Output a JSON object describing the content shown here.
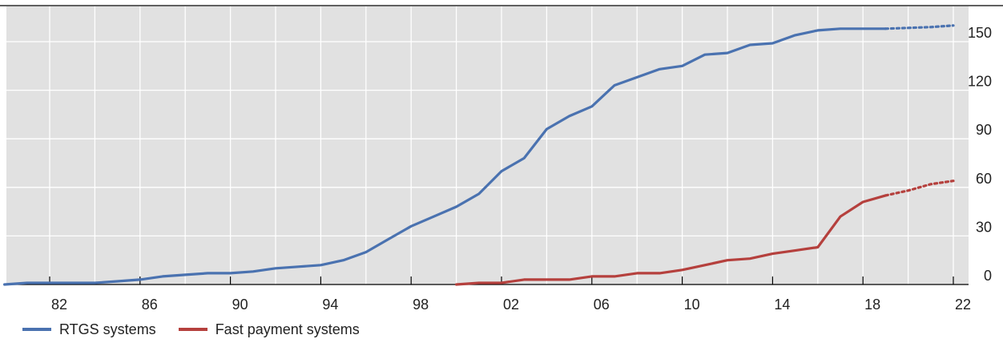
{
  "chart_data": {
    "type": "line",
    "title": "",
    "xlabel": "",
    "ylabel": "",
    "xlim": [
      1980.0,
      2022.2
    ],
    "ylim": [
      0,
      163
    ],
    "x_ticks": [
      {
        "value": 1982,
        "label": "82"
      },
      {
        "value": 1986,
        "label": "86"
      },
      {
        "value": 1990,
        "label": "90"
      },
      {
        "value": 1994,
        "label": "94"
      },
      {
        "value": 1998,
        "label": "98"
      },
      {
        "value": 2002,
        "label": "02"
      },
      {
        "value": 2006,
        "label": "06"
      },
      {
        "value": 2010,
        "label": "10"
      },
      {
        "value": 2014,
        "label": "14"
      },
      {
        "value": 2018,
        "label": "18"
      },
      {
        "value": 2022,
        "label": "22"
      }
    ],
    "y_ticks": [
      {
        "value": 0,
        "label": "0"
      },
      {
        "value": 30,
        "label": "30"
      },
      {
        "value": 60,
        "label": "60"
      },
      {
        "value": 90,
        "label": "90"
      },
      {
        "value": 120,
        "label": "120"
      },
      {
        "value": 150,
        "label": "150"
      }
    ],
    "y_axis_side": "right",
    "grid": true,
    "legend_position": "bottom-left",
    "series": [
      {
        "name": "RTGS systems",
        "color": "#4a72b0",
        "points": [
          [
            1980.0,
            0
          ],
          [
            1981.0,
            1
          ],
          [
            1982.0,
            1
          ],
          [
            1983.0,
            1
          ],
          [
            1984.0,
            1
          ],
          [
            1985.0,
            2
          ],
          [
            1986.0,
            3
          ],
          [
            1987.0,
            5
          ],
          [
            1988.0,
            6
          ],
          [
            1989.0,
            7
          ],
          [
            1990.0,
            7
          ],
          [
            1991.0,
            8
          ],
          [
            1992.0,
            10
          ],
          [
            1993.0,
            11
          ],
          [
            1994.0,
            12
          ],
          [
            1995.0,
            15
          ],
          [
            1996.0,
            20
          ],
          [
            1997.0,
            28
          ],
          [
            1998.0,
            36
          ],
          [
            1999.0,
            42
          ],
          [
            2000.0,
            48
          ],
          [
            2001.0,
            56
          ],
          [
            2002.0,
            70
          ],
          [
            2003.0,
            78
          ],
          [
            2004.0,
            96
          ],
          [
            2005.0,
            104
          ],
          [
            2006.0,
            110
          ],
          [
            2007.0,
            123
          ],
          [
            2008.0,
            128
          ],
          [
            2009.0,
            133
          ],
          [
            2010.0,
            135
          ],
          [
            2011.0,
            142
          ],
          [
            2012.0,
            143
          ],
          [
            2013.0,
            148
          ],
          [
            2014.0,
            149
          ],
          [
            2015.0,
            154
          ],
          [
            2016.0,
            157
          ],
          [
            2017.0,
            158
          ],
          [
            2018.0,
            158
          ],
          [
            2019.0,
            158
          ]
        ],
        "projected": [
          [
            2019.0,
            158
          ],
          [
            2020.0,
            158.5
          ],
          [
            2021.0,
            159
          ],
          [
            2022.0,
            160
          ]
        ]
      },
      {
        "name": "Fast payment systems",
        "color": "#b5403d",
        "points": [
          [
            2000.0,
            0
          ],
          [
            2001.0,
            1
          ],
          [
            2002.0,
            1
          ],
          [
            2003.0,
            3
          ],
          [
            2004.0,
            3
          ],
          [
            2005.0,
            3
          ],
          [
            2006.0,
            5
          ],
          [
            2007.0,
            5
          ],
          [
            2008.0,
            7
          ],
          [
            2009.0,
            7
          ],
          [
            2010.0,
            9
          ],
          [
            2011.0,
            12
          ],
          [
            2012.0,
            15
          ],
          [
            2013.0,
            16
          ],
          [
            2014.0,
            19
          ],
          [
            2015.0,
            21
          ],
          [
            2016.0,
            23
          ],
          [
            2017.0,
            42
          ],
          [
            2018.0,
            51
          ],
          [
            2019.0,
            55
          ]
        ],
        "projected": [
          [
            2019.0,
            55
          ],
          [
            2020.0,
            58
          ],
          [
            2021.0,
            62
          ],
          [
            2022.0,
            64
          ]
        ]
      }
    ]
  }
}
